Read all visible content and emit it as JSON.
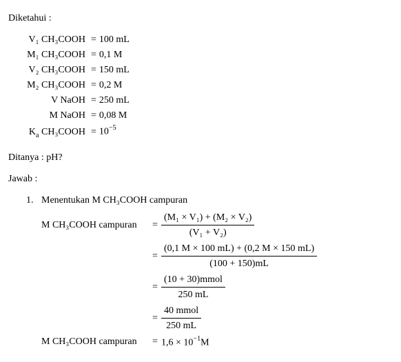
{
  "labels": {
    "diketahui": "Diketahui :",
    "ditanya": "Ditanya : pH?",
    "jawab": "Jawab :"
  },
  "given": {
    "row1": {
      "lhs": "V₁ CH₃COOH",
      "rhs": "100 mL"
    },
    "row2": {
      "lhs": "M₁ CH₃COOH",
      "rhs": "0,1 M"
    },
    "row3": {
      "lhs": "V₂ CH₃COOH",
      "rhs": "150 mL"
    },
    "row4": {
      "lhs": "M₂ CH₃COOH",
      "rhs": "0,2 M"
    },
    "row5": {
      "lhs": "V NaOH",
      "rhs": "250 mL"
    },
    "row6": {
      "lhs": "M NaOH",
      "rhs": "0,08 M"
    },
    "row7": {
      "lhs_pre": "K",
      "lhs_sub": "a",
      "lhs_post": " CH₃COOH",
      "rhs_pre": "10",
      "rhs_sup": "−5"
    }
  },
  "step1": {
    "number": "1.",
    "title": "Menentukan M CH₃COOH campuran",
    "lhs": "M CH₃COOH campuran",
    "line1": {
      "num": "(M₁ × V₁) + (M₂ × V₂)",
      "den": "(V₁ + V₂)"
    },
    "line2": {
      "num": "(0,1 M × 100 mL) + (0,2 M × 150 mL)",
      "den": "(100 + 150)mL"
    },
    "line3": {
      "num": "(10 + 30)mmol",
      "den": "250 mL"
    },
    "line4": {
      "num": "40 mmol",
      "den": "250 mL"
    },
    "result_pre": "1,6 × 10",
    "result_sup": "−1",
    "result_post": "M"
  },
  "eq": "="
}
